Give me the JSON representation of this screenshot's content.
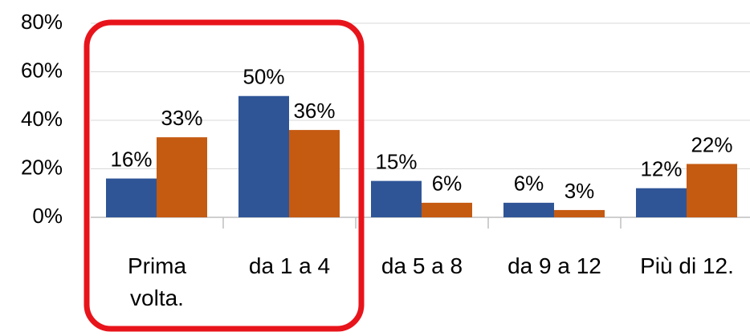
{
  "chart_data": {
    "type": "bar",
    "categories": [
      "Prima volta.",
      "da 1 a 4",
      "da 5 a 8",
      "da 9 a 12",
      "Più di 12."
    ],
    "series": [
      {
        "color": "#2f5597",
        "values": [
          16,
          50,
          15,
          6,
          12
        ],
        "value_labels": [
          "16%",
          "50%",
          "15%",
          "6%",
          "12%"
        ]
      },
      {
        "color": "#c55a11",
        "values": [
          33,
          36,
          6,
          3,
          22
        ],
        "value_labels": [
          "33%",
          "36%",
          "6%",
          "3%",
          "22%"
        ]
      }
    ],
    "ylim": [
      0,
      80
    ],
    "yticks": [
      {
        "value": 0,
        "label": "0%"
      },
      {
        "value": 20,
        "label": "20%"
      },
      {
        "value": 40,
        "label": "40%"
      },
      {
        "value": 60,
        "label": "60%"
      },
      {
        "value": 80,
        "label": "80%"
      }
    ],
    "grid": true
  }
}
